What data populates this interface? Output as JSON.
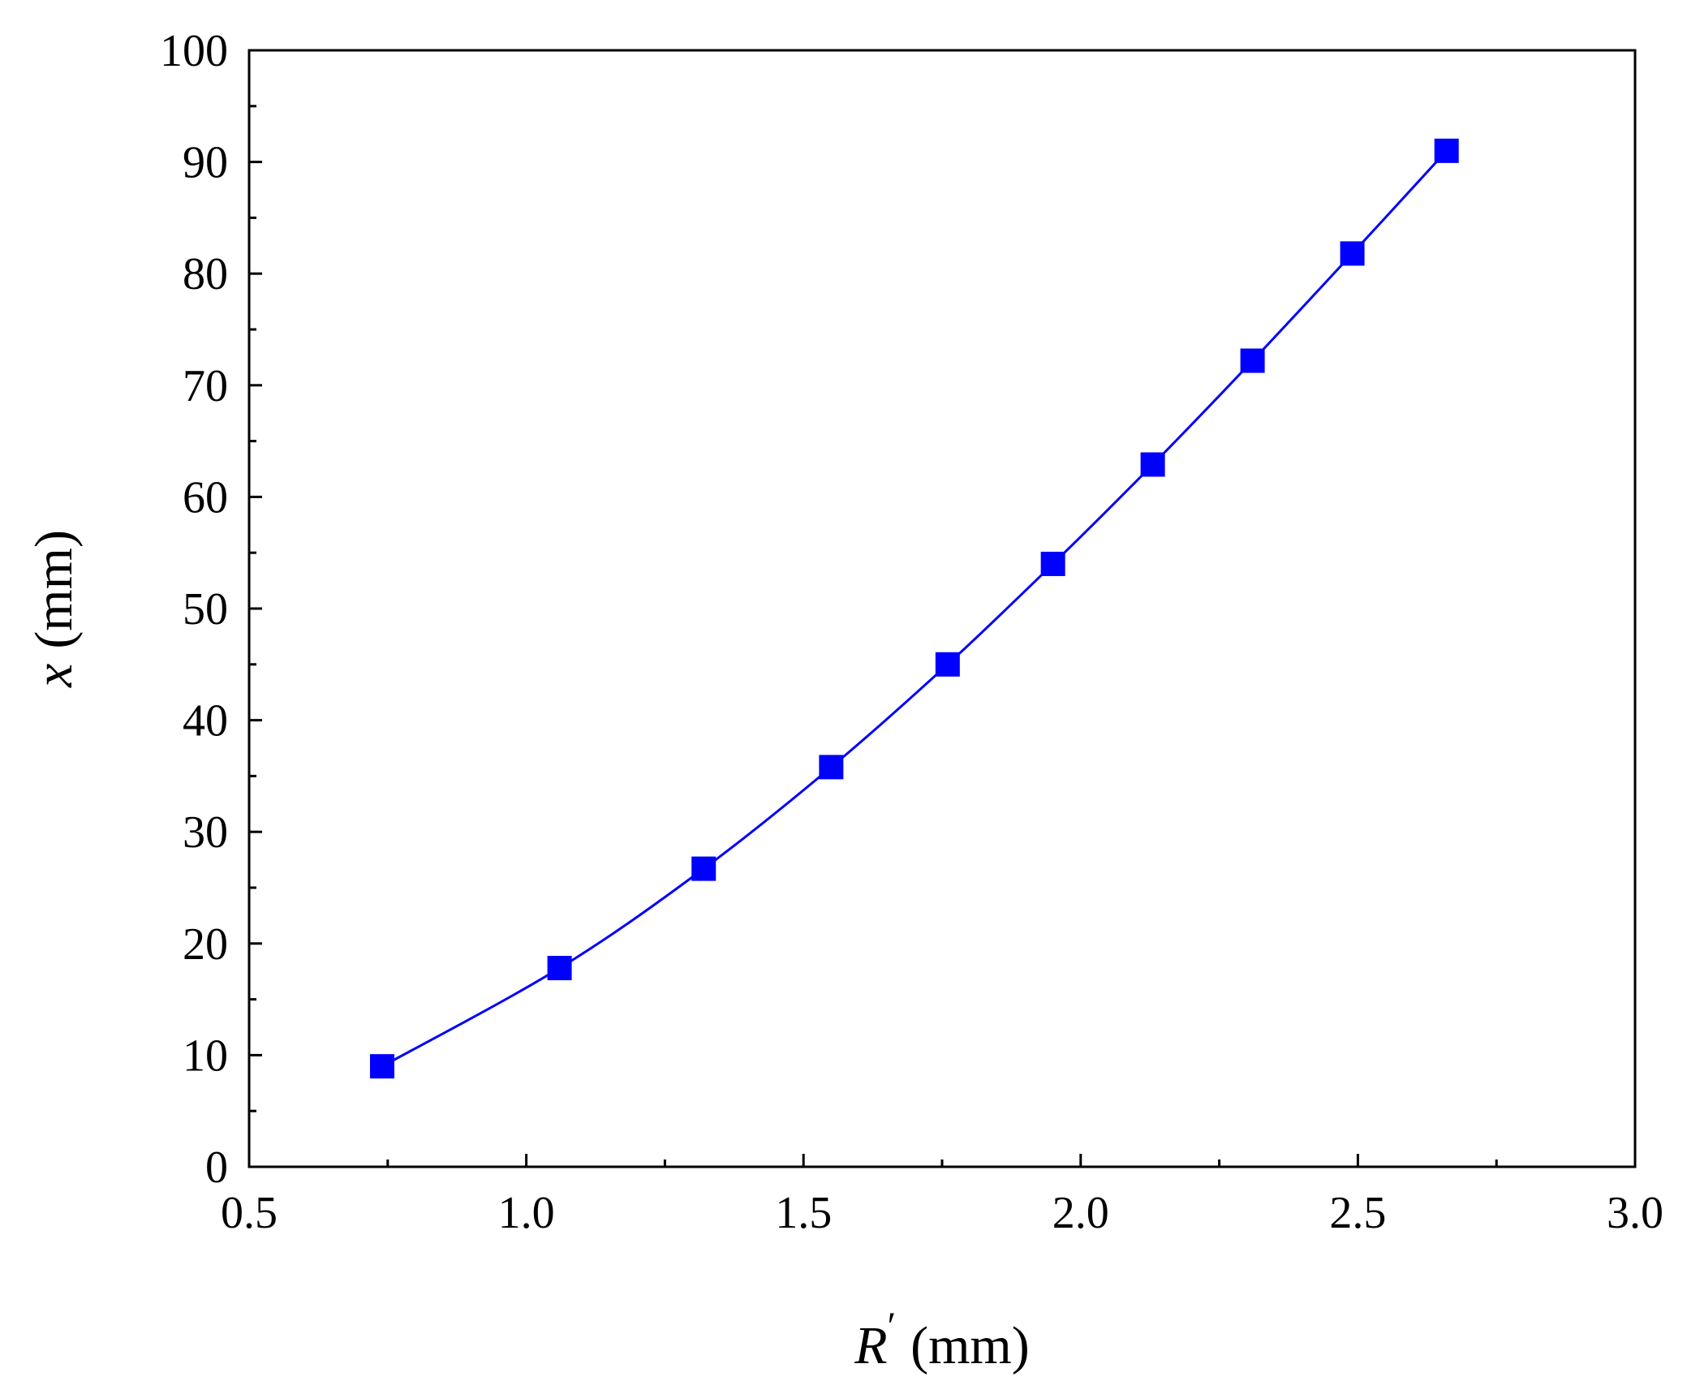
{
  "chart_data": {
    "type": "line",
    "title": "",
    "xlabel": {
      "symbol": "R",
      "prime": "′",
      "unit": "(mm)"
    },
    "ylabel": {
      "symbol": "x",
      "unit": "(mm)"
    },
    "xlim": [
      0.5,
      3.0
    ],
    "ylim": [
      0,
      100
    ],
    "xticks": [
      "0.5",
      "1.0",
      "1.5",
      "2.0",
      "2.5",
      "3.0"
    ],
    "yticks": [
      "0",
      "10",
      "20",
      "30",
      "40",
      "50",
      "60",
      "70",
      "80",
      "90",
      "100"
    ],
    "grid": false,
    "legend": "none",
    "series": [
      {
        "color": "#0000ff",
        "marker": "square",
        "smooth": true,
        "points": [
          {
            "x": 0.74,
            "y": 9.0
          },
          {
            "x": 1.06,
            "y": 17.8
          },
          {
            "x": 1.32,
            "y": 26.7
          },
          {
            "x": 1.55,
            "y": 35.8
          },
          {
            "x": 1.76,
            "y": 45.0
          },
          {
            "x": 1.95,
            "y": 54.0
          },
          {
            "x": 2.13,
            "y": 62.9
          },
          {
            "x": 2.31,
            "y": 72.2
          },
          {
            "x": 2.49,
            "y": 81.8
          },
          {
            "x": 2.66,
            "y": 91.0
          }
        ]
      }
    ]
  }
}
